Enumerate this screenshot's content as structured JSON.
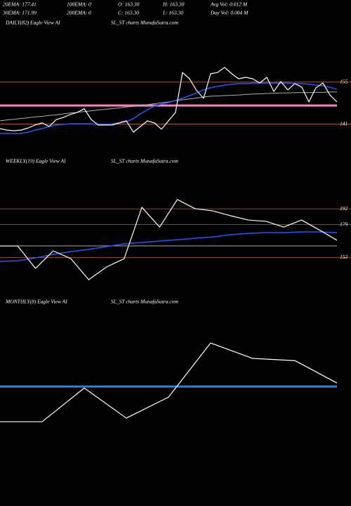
{
  "header": {
    "lines": [
      [
        "20EMA: 177.41",
        "100EMA: 0",
        "O: 163.30",
        "H: 163.30",
        "Avg Vol: 0.012 M"
      ],
      [
        "30EMA: 171.99",
        "200EMA: 0",
        "C: 163.30",
        "L: 163.30",
        "Day Vol: 0.004 M"
      ]
    ]
  },
  "chart_data": [
    {
      "type": "line",
      "label": "DAILY(82) Eagle  View  AI",
      "source": "SL_ST charts MunafaSutra.com",
      "ylim": [
        132,
        173
      ],
      "yticks": [
        155,
        141
      ],
      "tick_color": "#c0622a",
      "hlines": [
        {
          "value": 147.2,
          "color": "#ff80c0",
          "width": 3
        }
      ],
      "series": [
        {
          "color": "#b0b0b0",
          "width": 1,
          "values": [
            142.1,
            142.4,
            142.6,
            142.9,
            143.1,
            143.4,
            143.6,
            143.9,
            144.1,
            144.4,
            144.7,
            144.9,
            145.2,
            145.4,
            145.7,
            145.9,
            146.2,
            146.4,
            146.7,
            146.9,
            147.2,
            147.5,
            147.8,
            148.1,
            148.4,
            148.8,
            149.1,
            149.4,
            149.7,
            150.0,
            150.3,
            150.4,
            150.5,
            150.6,
            150.7,
            150.9,
            151.0,
            151.1,
            151.2,
            151.3,
            151.4,
            151.4,
            151.5,
            151.5,
            151.5,
            151.6,
            151.6,
            151.7,
            151.7
          ]
        },
        {
          "color": "#1e5bff",
          "width": 1.5,
          "values": [
            137.9,
            137.9,
            137.9,
            137.9,
            138.3,
            139.0,
            139.5,
            140.2,
            140.7,
            140.9,
            141.1,
            141.1,
            141.1,
            141.1,
            140.9,
            140.9,
            141.1,
            141.4,
            141.8,
            142.8,
            144.4,
            145.8,
            147.0,
            147.7,
            148.2,
            148.9,
            149.6,
            150.5,
            151.4,
            152.4,
            153.1,
            153.6,
            154.0,
            154.3,
            154.5,
            154.5,
            154.7,
            154.7,
            154.7,
            154.7,
            154.7,
            154.7,
            154.5,
            154.5,
            154.3,
            154.0,
            153.8,
            153.3,
            152.6
          ]
        },
        {
          "color": "#ffffff",
          "width": 1.2,
          "values": [
            139.5,
            139.0,
            138.8,
            139.0,
            139.7,
            140.7,
            141.4,
            140.2,
            142.5,
            143.2,
            144.2,
            144.9,
            146.1,
            142.5,
            140.7,
            140.7,
            140.7,
            141.4,
            142.1,
            138.3,
            140.2,
            142.1,
            141.4,
            139.3,
            142.1,
            144.9,
            158.2,
            156.1,
            152.2,
            149.6,
            157.8,
            158.2,
            159.9,
            157.8,
            156.1,
            156.6,
            156.1,
            154.7,
            156.6,
            151.9,
            155.2,
            152.4,
            154.5,
            153.3,
            148.4,
            153.1,
            154.7,
            150.7,
            148.4
          ]
        }
      ]
    },
    {
      "type": "line",
      "label": "WEEKLY(19) Eagle  View  AI",
      "source": "SL_ST charts MunafaSutra.com",
      "ylim": [
        121,
        225
      ],
      "yticks": [
        192,
        179,
        152
      ],
      "tick_color": "#c0622a",
      "hlines": [
        {
          "value": 161.5,
          "color": "#aaaaaa",
          "width": 1
        }
      ],
      "series": [
        {
          "color": "#1e5bff",
          "width": 1.5,
          "values": [
            148.7,
            149.3,
            151.6,
            154.5,
            156.8,
            158.6,
            160.9,
            163.2,
            164.3,
            165.5,
            166.6,
            167.8,
            168.9,
            170.7,
            171.8,
            172.4,
            172.4,
            173.0,
            173.0,
            172.4
          ]
        },
        {
          "color": "#ffffff",
          "width": 1.2,
          "values": [
            161.4,
            161.4,
            143.0,
            157.4,
            151.0,
            133.7,
            144.1,
            151.0,
            193.2,
            177.0,
            199.6,
            192.1,
            190.3,
            186.3,
            182.8,
            181.7,
            177.0,
            182.8,
            174.7,
            166.1
          ]
        }
      ]
    },
    {
      "type": "line",
      "label": "MONTHLY(8) Eagle  View  AI",
      "source": "SL_ST charts MunafaSutra.com",
      "ylim": [
        120,
        220
      ],
      "hlines": [
        {
          "value": 178.8,
          "color": "#3a7bd5",
          "width": 3
        }
      ],
      "series": [
        {
          "color": "#ffffff",
          "width": 1.2,
          "values": [
            159.2,
            159.2,
            178.0,
            161.2,
            172.9,
            203.1,
            194.5,
            193.3,
            180.8
          ]
        }
      ]
    }
  ]
}
